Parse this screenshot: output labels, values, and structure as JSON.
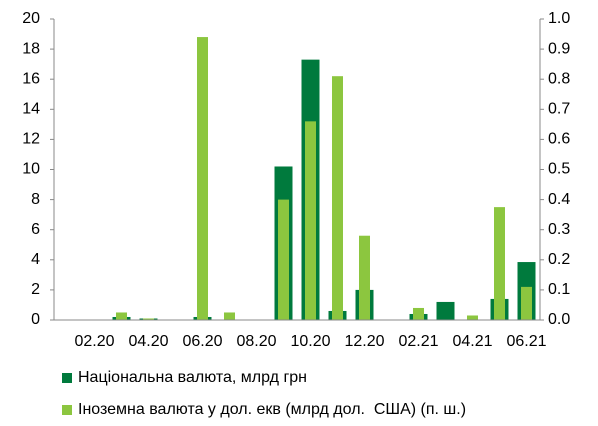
{
  "chart_data": {
    "type": "bar",
    "categories": [
      null,
      "02.20",
      null,
      "04.20",
      null,
      "06.20",
      null,
      "08.20",
      null,
      "10.20",
      null,
      "12.20",
      null,
      "02.21",
      null,
      "04.21",
      null,
      "06.21"
    ],
    "series": [
      {
        "name": "Національна валюта, млрд грн",
        "color": "#007a3d",
        "values": [
          0,
          0,
          0.2,
          0.1,
          0,
          0.2,
          0,
          0,
          10.2,
          17.3,
          0.6,
          2.0,
          0,
          0.4,
          1.2,
          0,
          1.4,
          3.85
        ]
      },
      {
        "name": "Іноземна валюта у дол. екв (млрд дол.  США) (п. ш.)",
        "color": "#8cc63f",
        "axis": "y2",
        "values": [
          0,
          0,
          0.025,
          0.005,
          0,
          0.94,
          0.025,
          0,
          0.4,
          0.66,
          0.81,
          0.28,
          0,
          0.04,
          0,
          0.015,
          0.375,
          0.11
        ]
      }
    ],
    "ylim": [
      0,
      20
    ],
    "yticks": [
      0,
      2,
      4,
      6,
      8,
      10,
      12,
      14,
      16,
      18,
      20
    ],
    "y2lim": [
      0,
      1
    ],
    "y2ticks": [
      {
        "value": 0,
        "label": "0.0"
      },
      0.1,
      0.2,
      0.3,
      0.4,
      0.5,
      0.6,
      0.7,
      0.8,
      0.9,
      {
        "value": 1,
        "label": "1.0"
      }
    ],
    "grid": false,
    "legend": "bottom"
  }
}
